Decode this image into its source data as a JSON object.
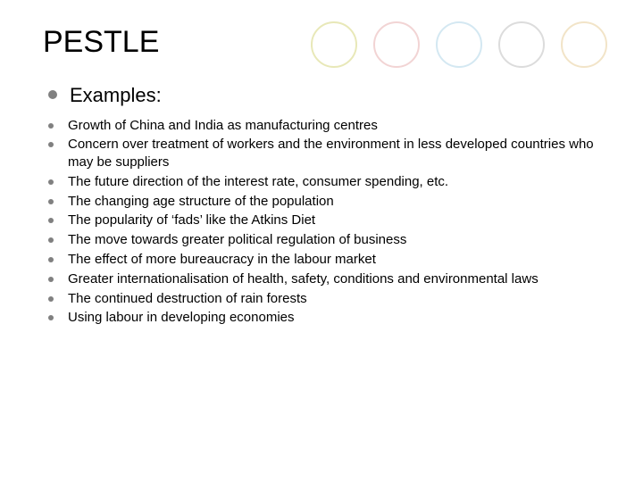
{
  "decor": {
    "circle_colors": [
      "#e8e8b8",
      "#f2d4d4",
      "#d4e8f2",
      "#dcdcdc",
      "#f2e4c8"
    ],
    "circle_size": 52,
    "circle_border": 2
  },
  "slide": {
    "title": "PESTLE",
    "title_fontsize": 34,
    "title_color": "#000000",
    "bullet_color": "#808080",
    "level1": {
      "text": "Examples:",
      "fontsize": 22
    },
    "level2": {
      "fontsize": 15,
      "items": [
        "Growth of China and India as manufacturing centres",
        "Concern over treatment of workers and the environment in less developed countries who may be suppliers",
        "The future direction of the interest rate, consumer spending, etc.",
        "The changing age structure of the population",
        "The popularity of ‘fads’ like the Atkins Diet",
        "The move towards greater political regulation of business",
        "The effect of more bureaucracy in the labour market",
        "Greater internationalisation of health, safety, conditions and environmental laws",
        "The continued destruction of rain forests",
        "Using labour in developing economies"
      ]
    },
    "background_color": "#ffffff"
  }
}
